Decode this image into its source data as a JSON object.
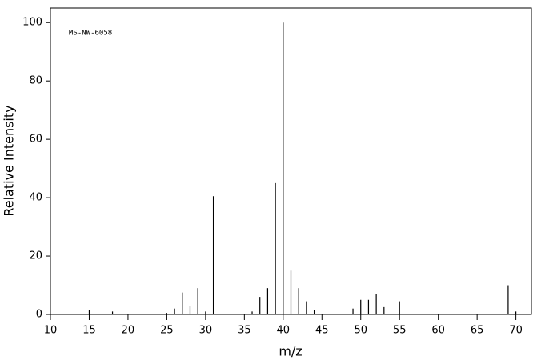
{
  "chart_data": {
    "type": "stem",
    "annotation": "MS-NW-6058",
    "x_label": "m/z",
    "y_label": "Relative Intensity",
    "x": [
      15,
      18,
      25,
      26,
      27,
      28,
      29,
      30,
      31,
      36,
      37,
      38,
      39,
      40,
      41,
      42,
      43,
      44,
      49,
      50,
      51,
      52,
      53,
      55,
      69,
      70
    ],
    "values": [
      1.5,
      1,
      0.5,
      2,
      7.5,
      3,
      9,
      1,
      40.5,
      1,
      6,
      9,
      45,
      100,
      15,
      9,
      4.5,
      1.5,
      2,
      5,
      5,
      7,
      2.5,
      4.5,
      10,
      1
    ],
    "color": "#000000",
    "xlim": [
      10,
      72
    ],
    "ylim": [
      0,
      105
    ],
    "xticks": [
      10,
      15,
      20,
      25,
      30,
      35,
      40,
      45,
      50,
      55,
      60,
      65,
      70
    ],
    "yticks": [
      0,
      20,
      40,
      60,
      80,
      100
    ]
  }
}
